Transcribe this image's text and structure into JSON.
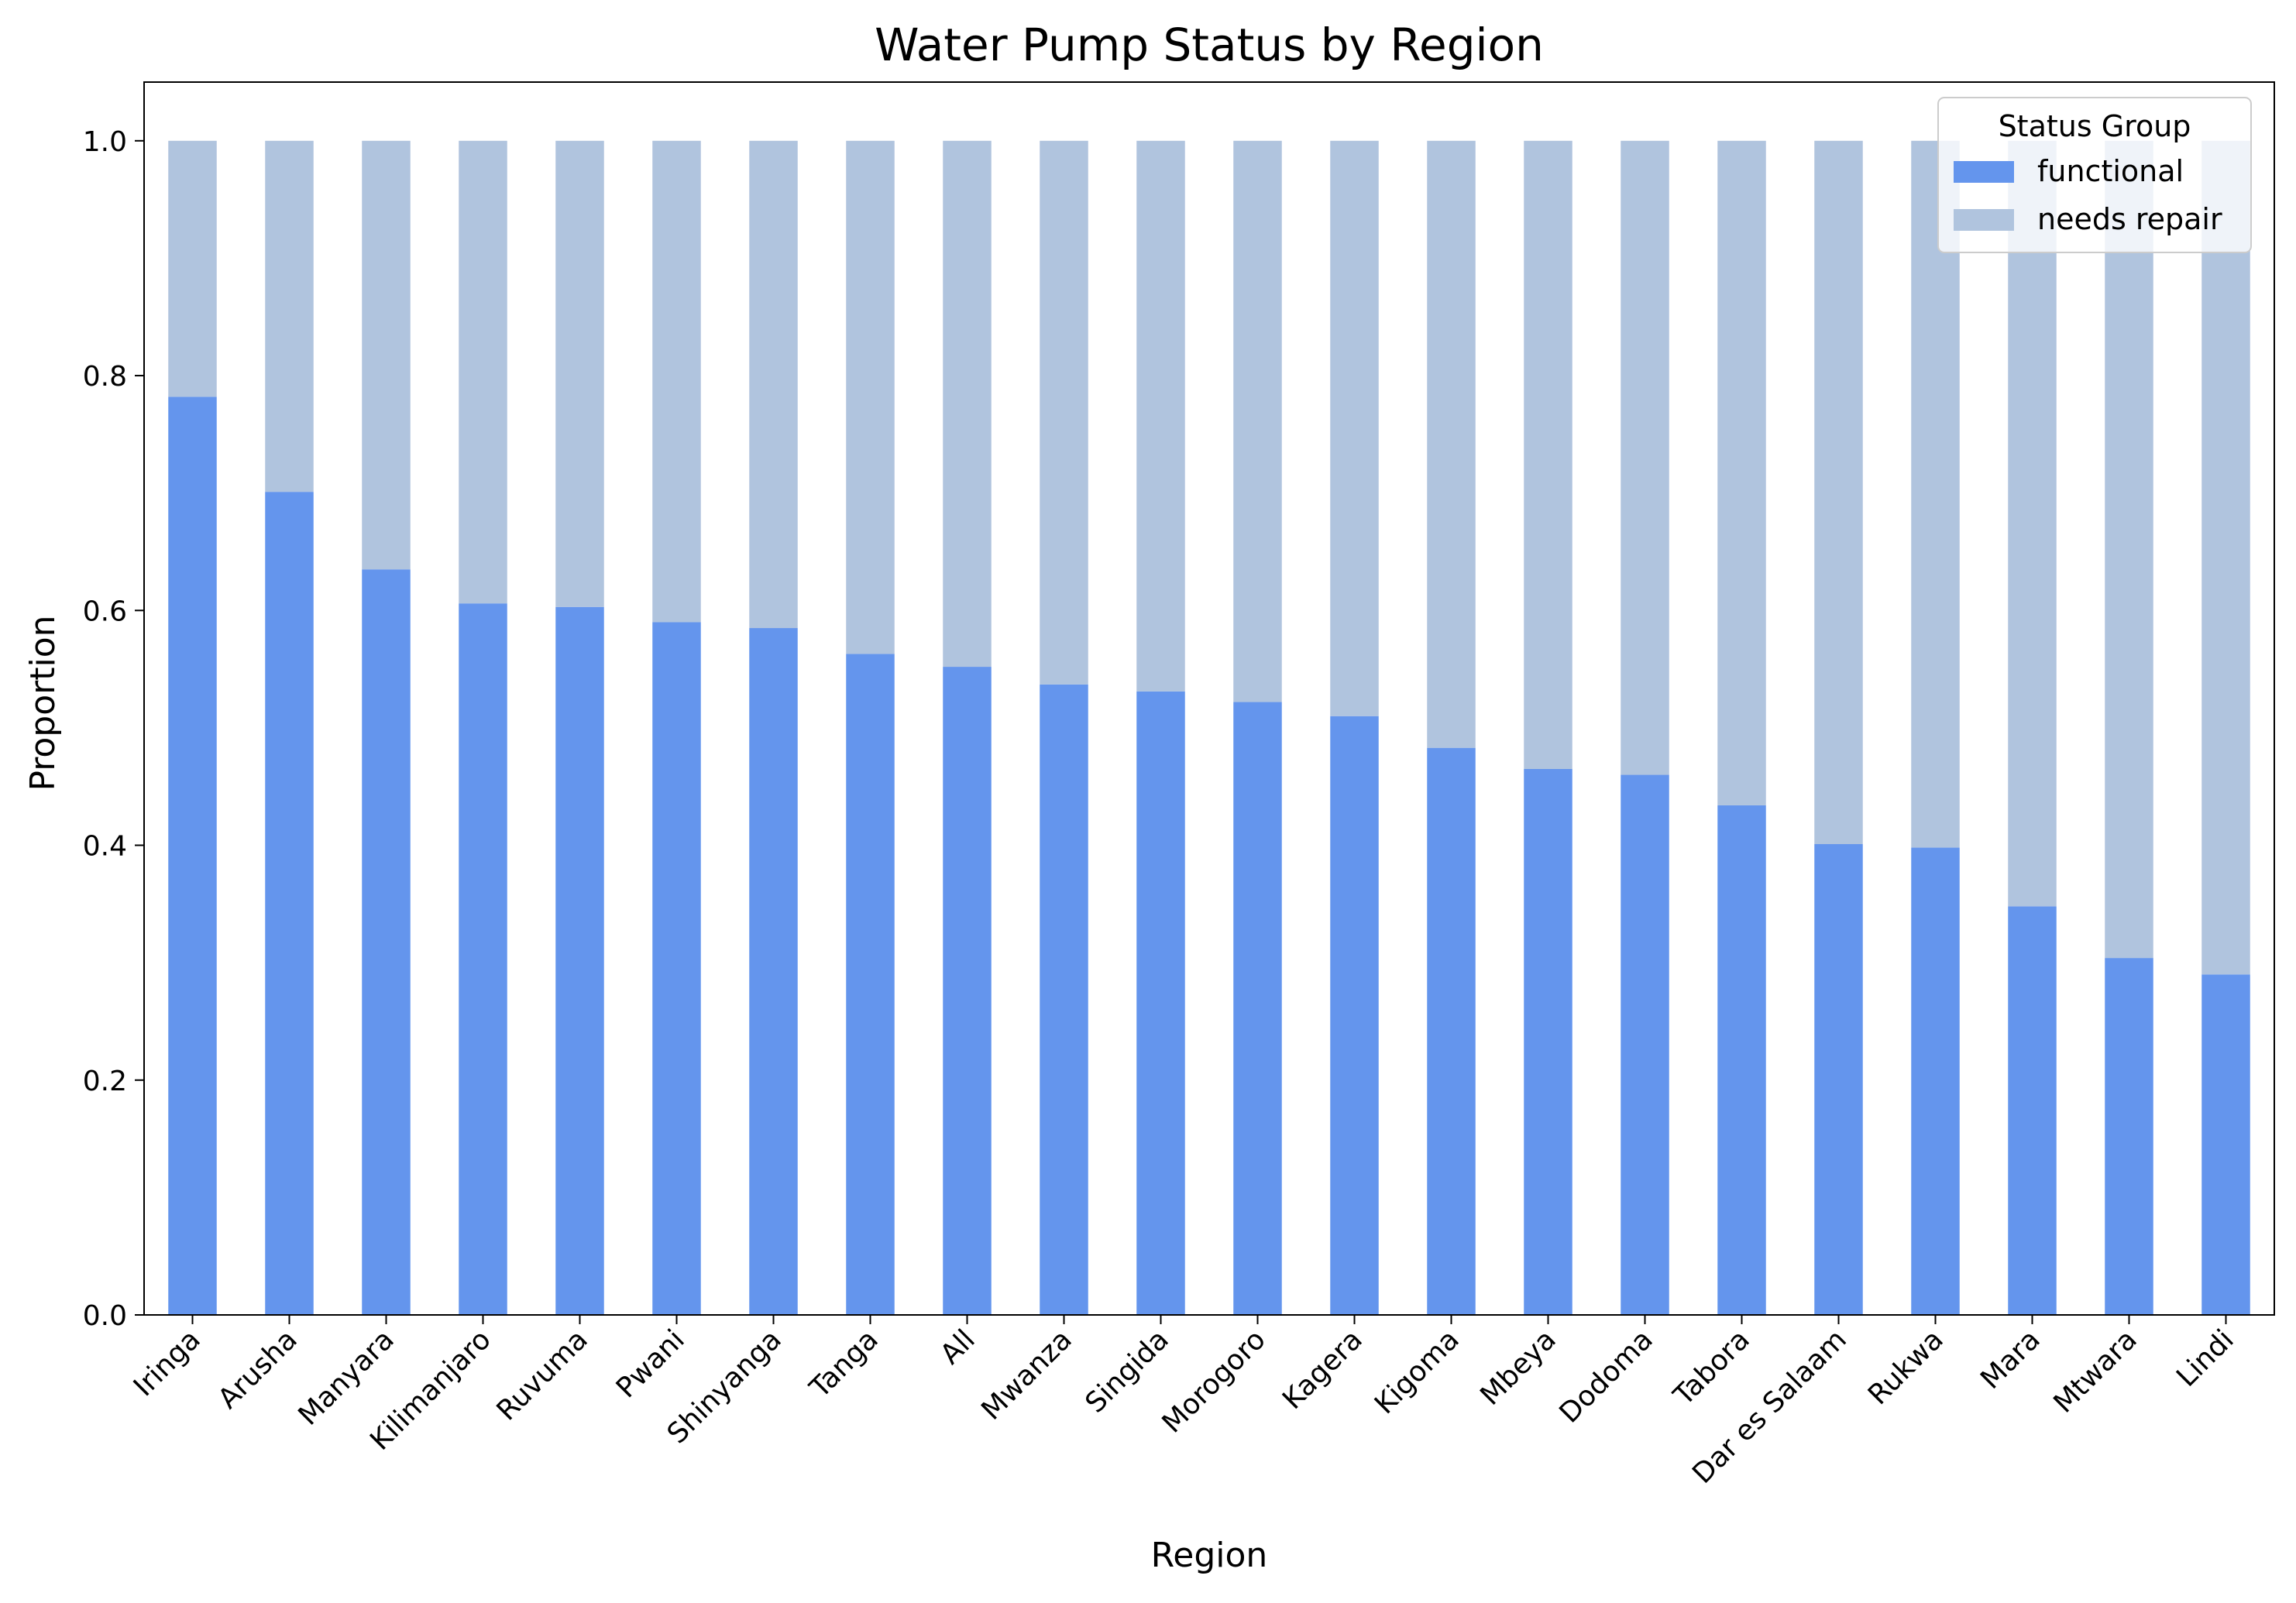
{
  "chart_data": {
    "type": "bar",
    "stacked": true,
    "title": "Water Pump Status by Region",
    "xlabel": "Region",
    "ylabel": "Proportion",
    "ylim": [
      0,
      1.05
    ],
    "yticks": [
      "0.0",
      "0.2",
      "0.4",
      "0.6",
      "0.8",
      "1.0"
    ],
    "grid": false,
    "legend": {
      "title": "Status Group",
      "placement": "top-right"
    },
    "categories": [
      "Iringa",
      "Arusha",
      "Manyara",
      "Kilimanjaro",
      "Ruvuma",
      "Pwani",
      "Shinyanga",
      "Tanga",
      "All",
      "Mwanza",
      "Singida",
      "Morogoro",
      "Kagera",
      "Kigoma",
      "Mbeya",
      "Dodoma",
      "Tabora",
      "Dar es Salaam",
      "Rukwa",
      "Mara",
      "Mtwara",
      "Lindi"
    ],
    "series": [
      {
        "name": "functional",
        "color": "#6495ED",
        "values": [
          0.782,
          0.701,
          0.635,
          0.606,
          0.603,
          0.59,
          0.585,
          0.563,
          0.552,
          0.537,
          0.531,
          0.522,
          0.51,
          0.483,
          0.465,
          0.46,
          0.434,
          0.401,
          0.398,
          0.348,
          0.304,
          0.29
        ]
      },
      {
        "name": "needs repair",
        "color": "#B0C4DE",
        "values": [
          0.218,
          0.299,
          0.365,
          0.394,
          0.397,
          0.41,
          0.415,
          0.437,
          0.448,
          0.463,
          0.469,
          0.478,
          0.49,
          0.517,
          0.535,
          0.54,
          0.566,
          0.599,
          0.602,
          0.652,
          0.696,
          0.71
        ]
      }
    ]
  }
}
